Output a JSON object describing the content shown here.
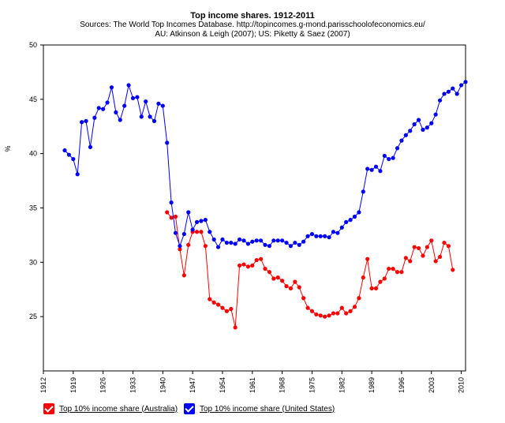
{
  "chart_data": {
    "type": "line",
    "title": "Top income shares. 1912-2011",
    "subtitle_lines": [
      "Sources: The World Top Incomes Database. http://topincomes.g-mond.parisschoolofeconomics.eu/",
      "AU: Atkinson & Leigh (2007); US: Piketty & Saez (2007)"
    ],
    "ylabel": "%",
    "xlabel": "",
    "xlim": [
      1912,
      2011
    ],
    "ylim": [
      20,
      50
    ],
    "y_ticks": [
      "25",
      "30",
      "35",
      "40",
      "45",
      "50"
    ],
    "x_ticks": [
      "1912",
      "1919",
      "1926",
      "1933",
      "1940",
      "1947",
      "1954",
      "1961",
      "1968",
      "1975",
      "1982",
      "1989",
      "1996",
      "2003",
      "2010"
    ],
    "grid": false,
    "legend_position": "bottom-left",
    "series": [
      {
        "name": "Top 10% income share (Australia)",
        "color": "#ff0000",
        "x": [
          1941,
          1942,
          1943,
          1944,
          1945,
          1946,
          1947,
          1948,
          1949,
          1950,
          1951,
          1952,
          1953,
          1954,
          1955,
          1956,
          1957,
          1958,
          1959,
          1960,
          1961,
          1962,
          1963,
          1964,
          1965,
          1966,
          1967,
          1968,
          1969,
          1970,
          1971,
          1972,
          1973,
          1974,
          1975,
          1976,
          1977,
          1978,
          1979,
          1980,
          1981,
          1982,
          1983,
          1984,
          1985,
          1986,
          1987,
          1988,
          1989,
          1990,
          1991,
          1992,
          1993,
          1994,
          1995,
          1996,
          1997,
          1998,
          1999,
          2000,
          2001,
          2002,
          2003,
          2004,
          2005,
          2006,
          2007,
          2008
        ],
        "values": [
          34.6,
          34.1,
          34.2,
          31.2,
          28.8,
          31.6,
          32.8,
          32.8,
          32.8,
          31.5,
          26.6,
          26.3,
          26.1,
          25.8,
          25.5,
          25.7,
          24.0,
          29.7,
          29.8,
          29.6,
          29.7,
          30.2,
          30.3,
          29.4,
          29.1,
          28.5,
          28.6,
          28.3,
          27.8,
          27.6,
          28.2,
          27.7,
          26.7,
          25.8,
          25.5,
          25.2,
          25.1,
          25.0,
          25.1,
          25.3,
          25.3,
          25.8,
          25.3,
          25.5,
          25.9,
          26.7,
          28.6,
          30.3,
          27.6,
          27.6,
          28.2,
          28.5,
          29.4,
          29.4,
          29.1,
          29.1,
          30.4,
          30.1,
          31.4,
          31.3,
          30.6,
          31.4,
          32.0,
          30.1,
          30.5,
          31.8,
          31.5,
          29.3
        ]
      },
      {
        "name": "Top 10% income share (United States)",
        "color": "#0000ff",
        "x": [
          1917,
          1918,
          1919,
          1920,
          1921,
          1922,
          1923,
          1924,
          1925,
          1926,
          1927,
          1928,
          1929,
          1930,
          1931,
          1932,
          1933,
          1934,
          1935,
          1936,
          1937,
          1938,
          1939,
          1940,
          1941,
          1942,
          1943,
          1944,
          1945,
          1946,
          1947,
          1948,
          1949,
          1950,
          1951,
          1952,
          1953,
          1954,
          1955,
          1956,
          1957,
          1958,
          1959,
          1960,
          1961,
          1962,
          1963,
          1964,
          1965,
          1966,
          1967,
          1968,
          1969,
          1970,
          1971,
          1972,
          1973,
          1974,
          1975,
          1976,
          1977,
          1978,
          1979,
          1980,
          1981,
          1982,
          1983,
          1984,
          1985,
          1986,
          1987,
          1988,
          1989,
          1990,
          1991,
          1992,
          1993,
          1994,
          1995,
          1996,
          1997,
          1998,
          1999,
          2000,
          2001,
          2002,
          2003,
          2004,
          2005,
          2006,
          2007,
          2008,
          2009,
          2010,
          2011
        ],
        "values": [
          40.3,
          39.9,
          39.5,
          38.1,
          42.9,
          43.0,
          40.6,
          43.3,
          44.2,
          44.1,
          44.7,
          46.1,
          43.8,
          43.1,
          44.4,
          46.3,
          45.1,
          45.2,
          43.4,
          44.8,
          43.4,
          43.0,
          44.6,
          44.4,
          41.0,
          35.5,
          32.7,
          31.5,
          32.6,
          34.6,
          33.0,
          33.7,
          33.8,
          33.9,
          32.8,
          32.1,
          31.4,
          32.1,
          31.8,
          31.8,
          31.7,
          32.1,
          32.0,
          31.7,
          31.9,
          32.0,
          32.0,
          31.6,
          31.5,
          32.0,
          32.0,
          32.0,
          31.8,
          31.5,
          31.8,
          31.6,
          31.9,
          32.4,
          32.6,
          32.4,
          32.4,
          32.4,
          32.3,
          32.8,
          32.7,
          33.2,
          33.7,
          33.9,
          34.2,
          34.6,
          36.5,
          38.6,
          38.5,
          38.8,
          38.4,
          39.8,
          39.5,
          39.6,
          40.5,
          41.2,
          41.7,
          42.1,
          42.7,
          43.1,
          42.2,
          42.4,
          42.8,
          43.6,
          44.9,
          45.5,
          45.7,
          46.0,
          45.5,
          46.3,
          46.6
        ]
      }
    ]
  }
}
